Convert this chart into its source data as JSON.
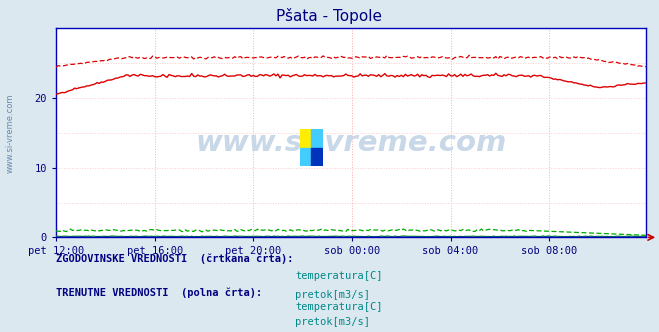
{
  "title": "Pšata - Topole",
  "title_color": "#000080",
  "bg_color": "#dce8f0",
  "plot_bg_color": "#ffffff",
  "watermark_text": "www.si-vreme.com",
  "watermark_color": "#c8d8e8",
  "ylim": [
    0,
    30
  ],
  "yticks": [
    0,
    10,
    20
  ],
  "tick_color": "#000080",
  "grid_color_v": "#ffaaaa",
  "grid_color_h": "#ffcccc",
  "axis_color": "#0000bb",
  "temp_color": "#dd0000",
  "flow_color": "#00aa00",
  "blue_color": "#0000cc",
  "n_points": 288,
  "legend_text1": "ZGODOVINSKE VREDNOSTI  (črtkana črta):",
  "legend_text2": "TRENUTNE VREDNOSTI  (polna črta):",
  "legend_label_temp": "temperatura[C]",
  "legend_label_flow": "pretok[m3/s]",
  "legend_text_color": "#000080",
  "legend_label_color": "#008888",
  "x_tick_labels": [
    "pet 12:00",
    "pet 16:00",
    "pet 20:00",
    "sob 00:00",
    "sob 04:00",
    "sob 08:00"
  ],
  "x_tick_positions": [
    0,
    48,
    96,
    144,
    192,
    240
  ],
  "side_label": "www.si-vreme.com"
}
